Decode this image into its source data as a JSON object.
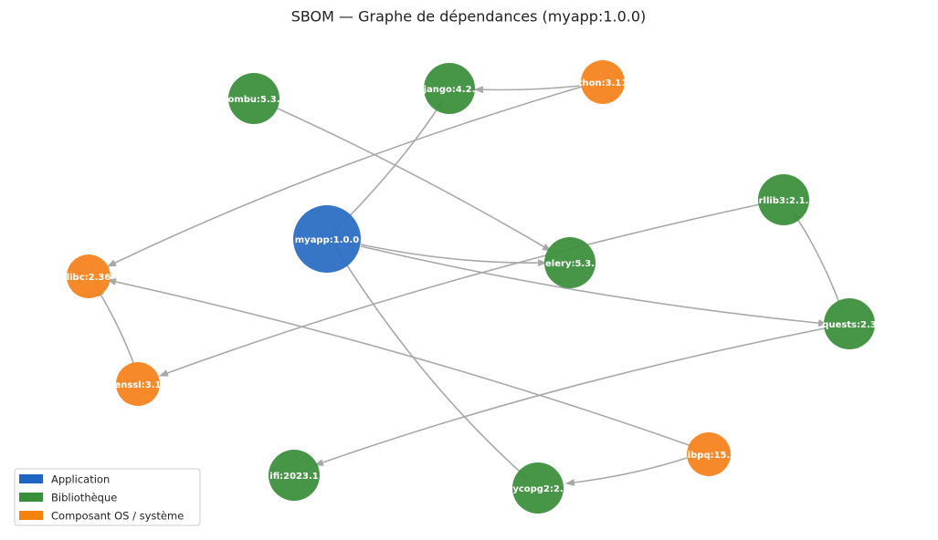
{
  "title": "SBOM — Graphe de dépendances (myapp:1.0.0)",
  "nodes": [
    {
      "label": "myapp:1.0.0",
      "color": "#2c6fc4"
    },
    {
      "label": "ombu:5.3.",
      "color": "#3d8f3d"
    },
    {
      "label": "jango:4.2.",
      "color": "#3d8f3d"
    },
    {
      "label": "thon:3.11",
      "color": "#f5841f"
    },
    {
      "label": "rllib3:2.1.",
      "color": "#3d8f3d"
    },
    {
      "label": "elery:5.3.",
      "color": "#3d8f3d"
    },
    {
      "label": "libc:2.36",
      "color": "#f5841f"
    },
    {
      "label": "quests:2.3",
      "color": "#3d8f3d"
    },
    {
      "label": "enssl:3.1",
      "color": "#f5841f"
    },
    {
      "label": "ibpq:15.",
      "color": "#f5841f"
    },
    {
      "label": "ifi:2023.1",
      "color": "#3d8f3d"
    },
    {
      "label": "ycopg2:2.",
      "color": "#3d8f3d"
    }
  ],
  "legend": [
    {
      "label": "Application",
      "color": "#1f66c4"
    },
    {
      "label": "Bibliothèque",
      "color": "#3a8f3a"
    },
    {
      "label": "Composant OS / système",
      "color": "#f5820f"
    }
  ]
}
